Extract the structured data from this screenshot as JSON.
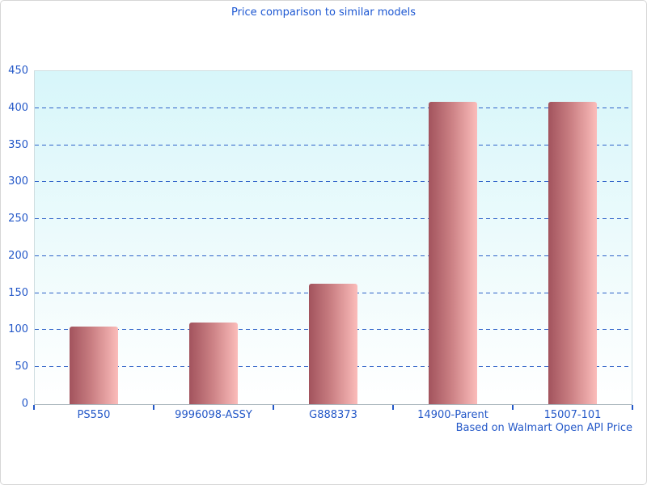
{
  "title": "Price comparison to similar models",
  "footer": "Based on Walmart Open API Price",
  "colors": {
    "title_text": "#1c57d2",
    "axis_text": "#2458c8",
    "gridline": "#2e62c8",
    "bar_gradient_dark": "#a2535d",
    "bar_gradient_light": "#fbbcba",
    "plot_bg_top": "#d7f6fa",
    "plot_bg_bottom": "#ffffff",
    "plot_border": "#cfdde0",
    "axis_line": "#a9b6bc",
    "canvas_border": "#d6d6d6"
  },
  "chart_data": {
    "type": "bar",
    "title": "Price comparison to similar models",
    "categories": [
      "PS550",
      "9996098-ASSY",
      "G888373",
      "14900-Parent",
      "15007-101"
    ],
    "values": [
      105,
      110,
      163,
      409,
      408
    ],
    "xlabel": "",
    "ylabel": "",
    "ylim": [
      0,
      450
    ],
    "yticks": [
      0,
      50,
      100,
      150,
      200,
      250,
      300,
      350,
      400,
      450
    ],
    "grid": "horizontal-dashed",
    "legend": "none",
    "annotation": "Based on Walmart Open API Price"
  }
}
